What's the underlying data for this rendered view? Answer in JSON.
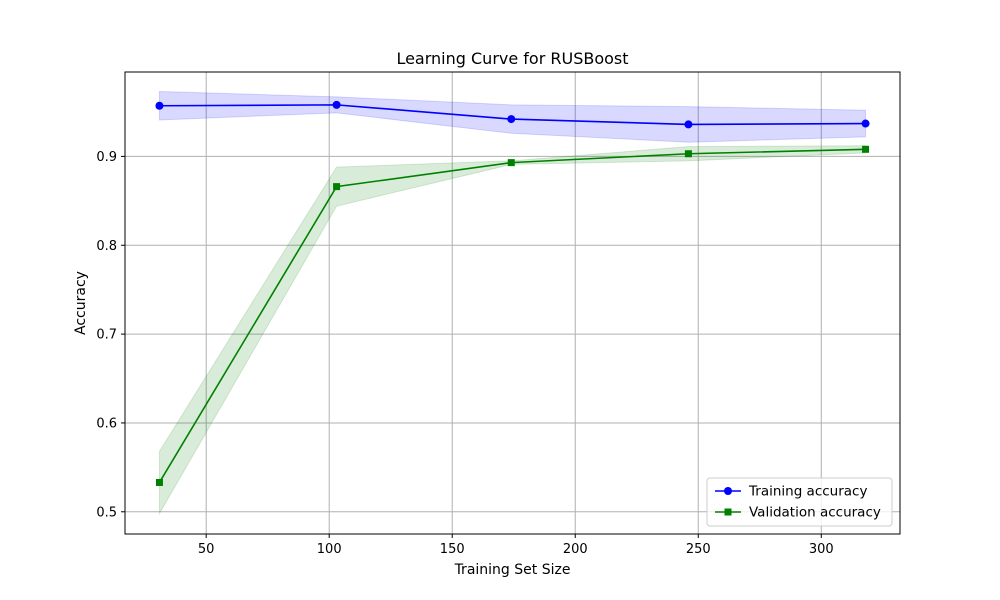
{
  "chart_data": {
    "type": "line",
    "title": "Learning Curve for RUSBoost",
    "xlabel": "Training Set Size",
    "ylabel": "Accuracy",
    "xlim": [
      17,
      332
    ],
    "ylim": [
      0.475,
      0.995
    ],
    "xticks": [
      50,
      100,
      150,
      200,
      250,
      300
    ],
    "yticks": [
      0.5,
      0.6,
      0.7,
      0.8,
      0.9
    ],
    "xtick_labels": [
      "50",
      "100",
      "150",
      "200",
      "250",
      "300"
    ],
    "ytick_labels": [
      "0.5",
      "0.6",
      "0.7",
      "0.8",
      "0.9"
    ],
    "grid": true,
    "legend_position": "lower-right",
    "x": [
      31,
      103,
      174,
      246,
      318
    ],
    "series": [
      {
        "name": "Training accuracy",
        "color": "#0000ff",
        "marker": "circle",
        "values": [
          0.957,
          0.958,
          0.942,
          0.936,
          0.937
        ],
        "upper": [
          0.973,
          0.967,
          0.958,
          0.956,
          0.952
        ],
        "lower": [
          0.941,
          0.949,
          0.926,
          0.916,
          0.922
        ]
      },
      {
        "name": "Validation accuracy",
        "color": "#008000",
        "marker": "square",
        "values": [
          0.533,
          0.866,
          0.893,
          0.903,
          0.908
        ],
        "upper": [
          0.568,
          0.888,
          0.895,
          0.911,
          0.912
        ],
        "lower": [
          0.498,
          0.844,
          0.891,
          0.895,
          0.904
        ]
      }
    ]
  }
}
